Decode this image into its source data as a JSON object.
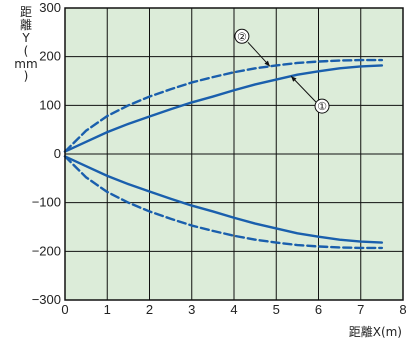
{
  "chart_data": {
    "type": "line",
    "title": "",
    "xlabel": "距離X(m)",
    "ylabel": [
      "距",
      "離",
      "Y",
      "(",
      "mm",
      ")"
    ],
    "xlim": [
      0,
      8
    ],
    "ylim": [
      -300,
      300
    ],
    "x_ticks": [
      "0",
      "1",
      "2",
      "3",
      "4",
      "5",
      "6",
      "7",
      "8"
    ],
    "y_ticks": [
      "−300",
      "−200",
      "−100",
      "0",
      "100",
      "200",
      "300"
    ],
    "grid": true,
    "background_color": "#dcecd9",
    "line_color": "#1a5fad",
    "series": [
      {
        "name": "①",
        "style": "solid",
        "x": [
          0,
          0.5,
          1,
          1.5,
          2,
          2.5,
          3,
          3.5,
          4,
          4.5,
          5,
          5.5,
          6,
          6.5,
          7,
          7.5
        ],
        "y": [
          5,
          25,
          45,
          62,
          77,
          92,
          106,
          118,
          131,
          143,
          153,
          163,
          170,
          176,
          180,
          182
        ]
      },
      {
        "name": "②",
        "style": "dashed",
        "x": [
          0,
          0.5,
          1,
          1.5,
          2,
          2.5,
          3,
          3.5,
          4,
          4.5,
          5,
          5.5,
          6,
          6.5,
          7,
          7.5
        ],
        "y": [
          5,
          48,
          78,
          100,
          118,
          133,
          147,
          158,
          168,
          176,
          182,
          187,
          190,
          192,
          193,
          193
        ]
      },
      {
        "name": "①",
        "style": "solid",
        "x": [
          0,
          0.5,
          1,
          1.5,
          2,
          2.5,
          3,
          3.5,
          4,
          4.5,
          5,
          5.5,
          6,
          6.5,
          7,
          7.5
        ],
        "y": [
          -5,
          -25,
          -45,
          -62,
          -77,
          -92,
          -106,
          -118,
          -131,
          -143,
          -153,
          -163,
          -170,
          -176,
          -180,
          -182
        ]
      },
      {
        "name": "②",
        "style": "dashed",
        "x": [
          0,
          0.5,
          1,
          1.5,
          2,
          2.5,
          3,
          3.5,
          4,
          4.5,
          5,
          5.5,
          6,
          6.5,
          7,
          7.5
        ],
        "y": [
          -5,
          -48,
          -78,
          -100,
          -118,
          -133,
          -147,
          -158,
          -168,
          -176,
          -182,
          -187,
          -190,
          -192,
          -193,
          -193
        ]
      }
    ],
    "annotations": [
      {
        "label": "②",
        "series_index": 1,
        "at_x": 4.85
      },
      {
        "label": "①",
        "series_index": 0,
        "at_x": 5.35
      }
    ]
  }
}
